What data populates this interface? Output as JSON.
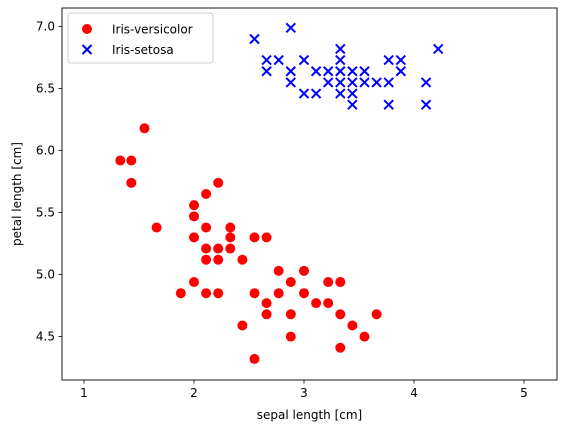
{
  "chart_data": {
    "type": "scatter",
    "title": "",
    "xlabel": "sepal length [cm]",
    "ylabel": "petal length [cm]",
    "xlim": [
      0.8,
      5.3
    ],
    "ylim": [
      4.15,
      7.15
    ],
    "xticks": [
      1,
      2,
      3,
      4,
      5
    ],
    "yticks": [
      4.5,
      5.0,
      5.5,
      6.0,
      6.5,
      7.0
    ],
    "xtick_labels": [
      "1",
      "2",
      "3",
      "4",
      "5"
    ],
    "ytick_labels": [
      "4.5",
      "5.0",
      "5.5",
      "6.0",
      "6.5",
      "7.0"
    ],
    "grid": false,
    "legend_position": "top-left",
    "series": [
      {
        "name": "Iris-versicolor",
        "marker": "circle",
        "color": "#ff0000",
        "points": [
          [
            1.55,
            6.18
          ],
          [
            1.33,
            5.92
          ],
          [
            1.43,
            5.92
          ],
          [
            1.43,
            5.74
          ],
          [
            1.66,
            5.38
          ],
          [
            1.88,
            4.85
          ],
          [
            2.0,
            5.56
          ],
          [
            2.0,
            5.47
          ],
          [
            2.0,
            5.3
          ],
          [
            2.0,
            4.94
          ],
          [
            2.11,
            5.65
          ],
          [
            2.11,
            5.38
          ],
          [
            2.11,
            5.21
          ],
          [
            2.11,
            5.12
          ],
          [
            2.11,
            4.85
          ],
          [
            2.22,
            5.74
          ],
          [
            2.22,
            5.21
          ],
          [
            2.22,
            5.12
          ],
          [
            2.22,
            4.85
          ],
          [
            2.33,
            5.38
          ],
          [
            2.33,
            5.3
          ],
          [
            2.33,
            5.21
          ],
          [
            2.44,
            5.12
          ],
          [
            2.44,
            4.59
          ],
          [
            2.55,
            5.3
          ],
          [
            2.55,
            4.85
          ],
          [
            2.55,
            4.32
          ],
          [
            2.66,
            5.3
          ],
          [
            2.66,
            4.77
          ],
          [
            2.66,
            4.68
          ],
          [
            2.77,
            5.03
          ],
          [
            2.77,
            4.85
          ],
          [
            2.88,
            4.94
          ],
          [
            2.88,
            4.68
          ],
          [
            2.88,
            4.5
          ],
          [
            3.0,
            5.03
          ],
          [
            3.0,
            4.85
          ],
          [
            3.11,
            4.77
          ],
          [
            3.22,
            4.94
          ],
          [
            3.22,
            4.77
          ],
          [
            3.33,
            4.94
          ],
          [
            3.33,
            4.68
          ],
          [
            3.33,
            4.41
          ],
          [
            3.44,
            4.59
          ],
          [
            3.55,
            4.5
          ],
          [
            3.66,
            4.68
          ]
        ]
      },
      {
        "name": "Iris-setosa",
        "marker": "x",
        "color": "#0000ff",
        "points": [
          [
            2.55,
            6.9
          ],
          [
            2.66,
            6.73
          ],
          [
            2.66,
            6.64
          ],
          [
            2.77,
            6.73
          ],
          [
            2.88,
            6.99
          ],
          [
            2.88,
            6.64
          ],
          [
            2.88,
            6.55
          ],
          [
            3.0,
            6.73
          ],
          [
            3.0,
            6.46
          ],
          [
            3.11,
            6.64
          ],
          [
            3.11,
            6.46
          ],
          [
            3.22,
            6.64
          ],
          [
            3.22,
            6.55
          ],
          [
            3.33,
            6.82
          ],
          [
            3.33,
            6.73
          ],
          [
            3.33,
            6.64
          ],
          [
            3.33,
            6.55
          ],
          [
            3.33,
            6.46
          ],
          [
            3.44,
            6.64
          ],
          [
            3.44,
            6.55
          ],
          [
            3.44,
            6.46
          ],
          [
            3.44,
            6.37
          ],
          [
            3.55,
            6.64
          ],
          [
            3.55,
            6.55
          ],
          [
            3.66,
            6.55
          ],
          [
            3.77,
            6.73
          ],
          [
            3.77,
            6.55
          ],
          [
            3.77,
            6.37
          ],
          [
            3.88,
            6.73
          ],
          [
            3.88,
            6.64
          ],
          [
            4.11,
            6.55
          ],
          [
            4.11,
            6.37
          ],
          [
            4.22,
            6.82
          ]
        ]
      }
    ]
  }
}
